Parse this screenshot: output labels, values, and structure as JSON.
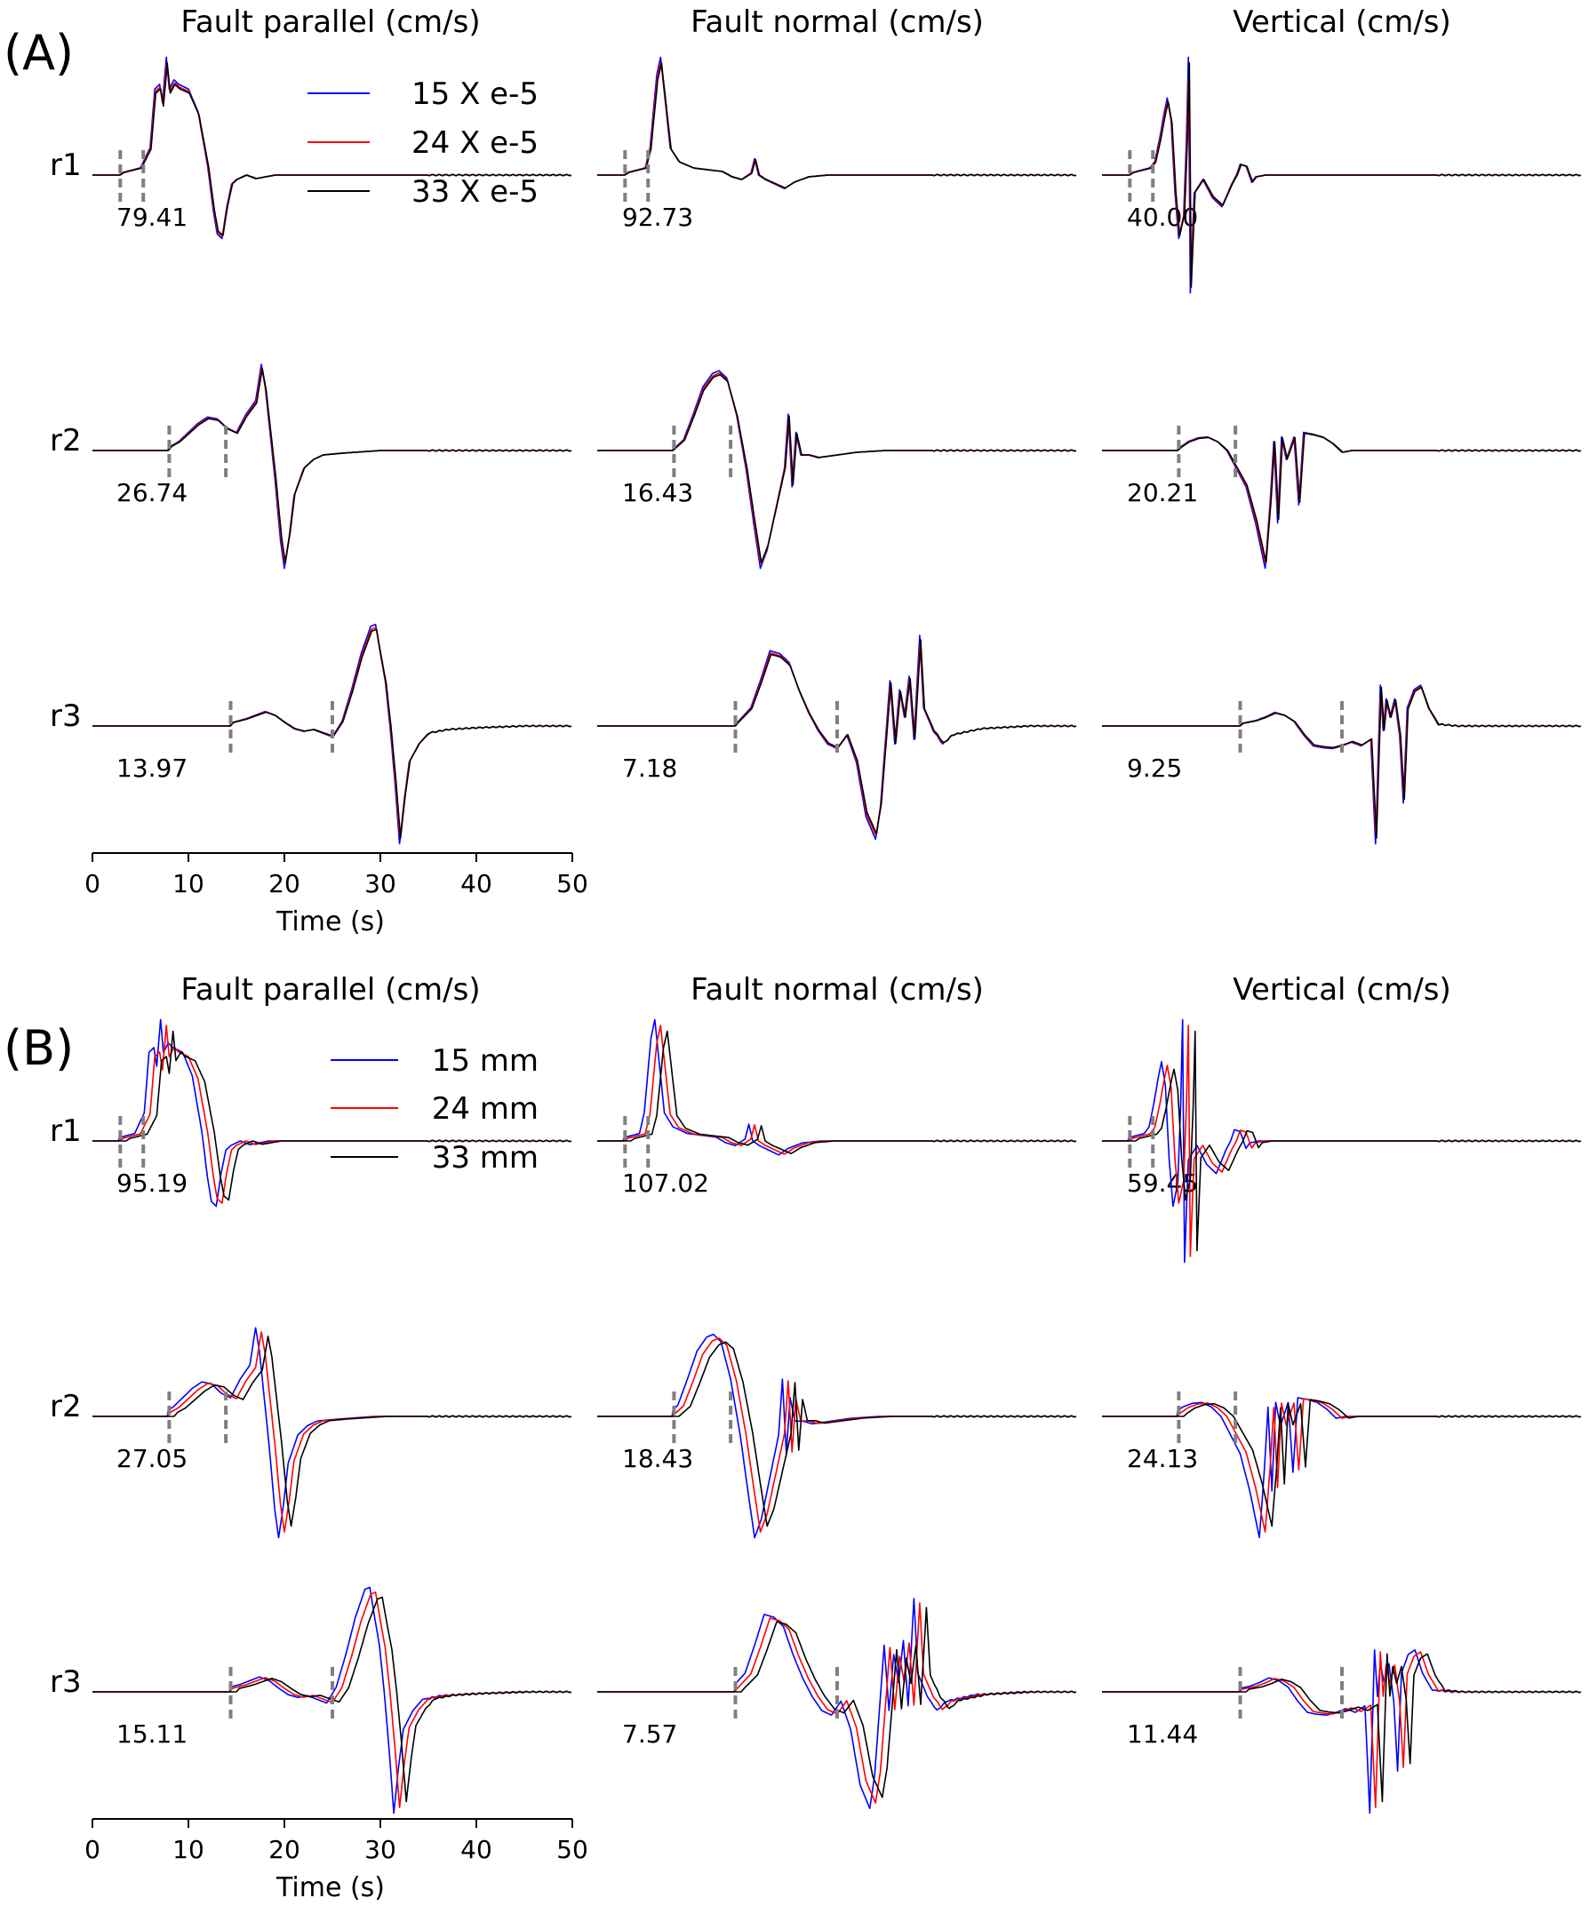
{
  "figure": {
    "colors": {
      "blue": "#0000ff",
      "red": "#ff0000",
      "black": "#000000",
      "marker": "#808080"
    },
    "column_titles": [
      "Fault parallel (cm/s)",
      "Fault normal (cm/s)",
      "Vertical (cm/s)"
    ],
    "row_labels": [
      "r1",
      "r2",
      "r3"
    ],
    "time_axis": {
      "label": "Time (s)",
      "ticks": [
        0,
        10,
        20,
        30,
        40,
        50
      ],
      "range": [
        0,
        50
      ]
    }
  },
  "chart_data": [
    {
      "type": "line",
      "panel_label": "(A)",
      "legend": [
        "15 X e-5",
        "24 X e-5",
        "33 X e-5"
      ],
      "series_colors": [
        "#0000ff",
        "#ff0000",
        "#000000"
      ],
      "xlabel": "Time (s)",
      "xlim": [
        0,
        50
      ],
      "peak_values": [
        [
          "79.41",
          "92.73",
          "40.00"
        ],
        [
          "26.74",
          "16.43",
          "20.21"
        ],
        [
          "13.97",
          "7.18",
          "9.25"
        ]
      ],
      "markers_s": [
        [
          2.9,
          5.3
        ],
        [
          8.0,
          13.9
        ],
        [
          14.4,
          25.0
        ]
      ]
    },
    {
      "type": "line",
      "panel_label": "(B)",
      "legend": [
        "15 mm",
        "24 mm",
        "33 mm"
      ],
      "series_colors": [
        "#0000ff",
        "#ff0000",
        "#000000"
      ],
      "xlabel": "Time (s)",
      "xlim": [
        0,
        50
      ],
      "peak_values": [
        [
          "95.19",
          "107.02",
          "59.45"
        ],
        [
          "27.05",
          "18.43",
          "24.13"
        ],
        [
          "15.11",
          "7.57",
          "11.44"
        ]
      ],
      "markers_s": [
        [
          2.9,
          5.3
        ],
        [
          8.0,
          13.9
        ],
        [
          14.4,
          25.0
        ]
      ]
    }
  ]
}
